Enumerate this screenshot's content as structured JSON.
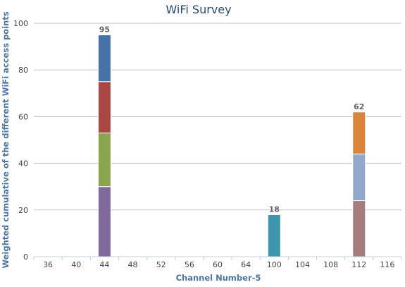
{
  "chart_data": {
    "type": "bar",
    "stacked": true,
    "title": "WiFi Survey",
    "xlabel": "Channel Number-5",
    "ylabel": "Weighted cumulative of the different WiFi access points",
    "categories": [
      "36",
      "40",
      "44",
      "48",
      "52",
      "56",
      "60",
      "64",
      "100",
      "104",
      "108",
      "112",
      "116"
    ],
    "ylim": [
      0,
      100
    ],
    "yticks": [
      0,
      20,
      40,
      60,
      80,
      100
    ],
    "grid": true,
    "legend": "none",
    "segments": [
      {
        "category": "44",
        "from": 0,
        "to": 30,
        "color": "#80699b"
      },
      {
        "category": "44",
        "from": 30,
        "to": 53,
        "color": "#89a54e"
      },
      {
        "category": "44",
        "from": 53,
        "to": 75,
        "color": "#aa4643"
      },
      {
        "category": "44",
        "from": 75,
        "to": 95,
        "color": "#4572a7"
      },
      {
        "category": "100",
        "from": 0,
        "to": 18,
        "color": "#3d96ae"
      },
      {
        "category": "112",
        "from": 0,
        "to": 24,
        "color": "#a47d7c"
      },
      {
        "category": "112",
        "from": 24,
        "to": 44,
        "color": "#92a8cd"
      },
      {
        "category": "112",
        "from": 44,
        "to": 62,
        "color": "#db843d"
      }
    ],
    "totals": [
      {
        "category": "44",
        "value": 95
      },
      {
        "category": "100",
        "value": 18
      },
      {
        "category": "112",
        "value": 62
      }
    ]
  }
}
